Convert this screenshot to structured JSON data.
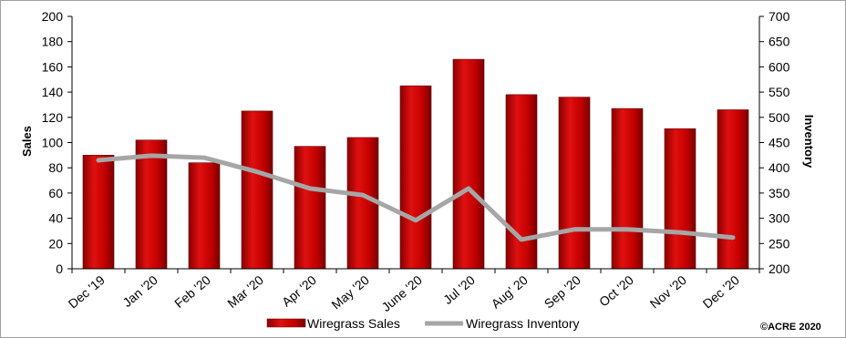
{
  "chart_data": {
    "type": "bar",
    "categories": [
      "Dec '19",
      "Jan '20",
      "Feb '20",
      "Mar '20",
      "Apr '20",
      "May '20",
      "June '20",
      "Jul '20",
      "Aug' 20",
      "Sep '20",
      "Oct '20",
      "Nov '20",
      "Dec '20"
    ],
    "series": [
      {
        "name": "Wiregrass Sales",
        "type": "bar",
        "axis": "left",
        "color": "#cc0000",
        "values": [
          90,
          102,
          84,
          125,
          97,
          104,
          145,
          166,
          138,
          136,
          127,
          111,
          126
        ]
      },
      {
        "name": "Wiregrass Inventory",
        "type": "line",
        "axis": "right",
        "color": "#a6a6a6",
        "values": [
          415,
          424,
          420,
          392,
          359,
          346,
          296,
          359,
          258,
          278,
          278,
          272,
          262
        ]
      }
    ],
    "ylabel": "Sales",
    "y2label": "Inventory",
    "ylim": [
      0,
      200
    ],
    "y2lim": [
      200,
      700
    ],
    "yticks": [
      "0",
      "20",
      "40",
      "60",
      "80",
      "100",
      "120",
      "140",
      "160",
      "180",
      "200"
    ],
    "y2ticks": [
      "200",
      "250",
      "300",
      "350",
      "400",
      "450",
      "500",
      "550",
      "600",
      "650",
      "700"
    ],
    "legend_position": "bottom",
    "grid": false
  },
  "copyright": "©ACRE 2020"
}
